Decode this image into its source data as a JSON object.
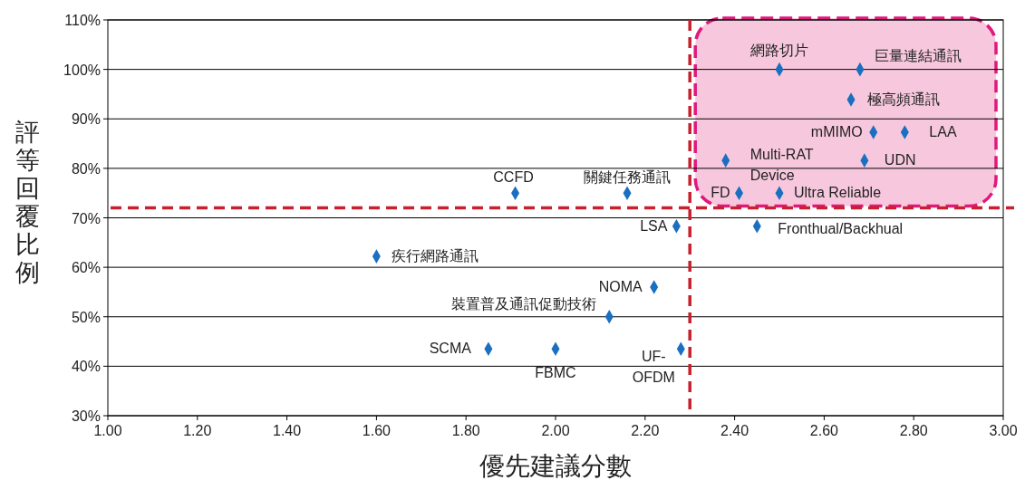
{
  "chart_data": {
    "type": "scatter",
    "xlabel": "優先建議分數",
    "ylabel": "評等回覆比例",
    "x": [
      2.5,
      2.68,
      2.66,
      2.71,
      2.78,
      2.38,
      2.69,
      2.41,
      2.5,
      2.45,
      2.27,
      1.91,
      2.16,
      1.6,
      2.22,
      2.12,
      1.85,
      2.0,
      2.28
    ],
    "series": [
      {
        "color": "#1a6fc0",
        "values": [
          100,
          100,
          93.9,
          87.3,
          87.3,
          81.6,
          81.6,
          75,
          75,
          68.3,
          68.3,
          75,
          75,
          62.2,
          56,
          50,
          43.5,
          43.5,
          43.5
        ]
      }
    ],
    "marker": "diamond",
    "grid": "y",
    "xlim": [
      1,
      3
    ],
    "xticks": [
      {
        "value": 1,
        "label": "1.00"
      },
      {
        "value": 1.2,
        "label": "1.20"
      },
      {
        "value": 1.4,
        "label": "1.40"
      },
      {
        "value": 1.6,
        "label": "1.60"
      },
      {
        "value": 1.8,
        "label": "1.80"
      },
      {
        "value": 2,
        "label": "2.00"
      },
      {
        "value": 2.2,
        "label": "2.20"
      },
      {
        "value": 2.4,
        "label": "2.40"
      },
      {
        "value": 2.6,
        "label": "2.60"
      },
      {
        "value": 2.8,
        "label": "2.80"
      },
      {
        "value": 3,
        "label": "3.00"
      }
    ],
    "ylim": [
      30,
      110
    ],
    "yticks": [
      {
        "value": 30,
        "label": "30%"
      },
      {
        "value": 40,
        "label": "40%"
      },
      {
        "value": 50,
        "label": "50%"
      },
      {
        "value": 60,
        "label": "60%"
      },
      {
        "value": 70,
        "label": "70%"
      },
      {
        "value": 80,
        "label": "80%"
      },
      {
        "value": 90,
        "label": "90%"
      },
      {
        "value": 100,
        "label": "100%"
      },
      {
        "value": 110,
        "label": "110%"
      }
    ],
    "ref_lines": [
      {
        "axis": "x",
        "value": 2.3,
        "color": "#c8202e",
        "line_style": "dashed"
      },
      {
        "axis": "y",
        "value": 72,
        "color": "#c8202e",
        "line_style": "dashed"
      }
    ],
    "annotations": [
      {
        "text": "網路切片",
        "x": 2.5,
        "y": 100
      },
      {
        "text": "巨量連結通訊",
        "x": 2.68,
        "y": 100
      },
      {
        "text": "極高頻通訊",
        "x": 2.66,
        "y": 93.9
      },
      {
        "text": "mMIMO",
        "x": 2.71,
        "y": 87.3
      },
      {
        "text": "LAA",
        "x": 2.78,
        "y": 87.3
      },
      {
        "text": "Multi-RAT\nDevice",
        "x": 2.38,
        "y": 81.6
      },
      {
        "text": "UDN",
        "x": 2.69,
        "y": 81.6
      },
      {
        "text": "FD",
        "x": 2.41,
        "y": 75
      },
      {
        "text": "Ultra Reliable",
        "x": 2.5,
        "y": 75
      },
      {
        "text": "Fronthual/Backhual",
        "x": 2.45,
        "y": 68.3
      },
      {
        "text": "LSA",
        "x": 2.27,
        "y": 68.3
      },
      {
        "text": "CCFD",
        "x": 1.91,
        "y": 75
      },
      {
        "text": "關鍵任務通訊",
        "x": 2.16,
        "y": 75
      },
      {
        "text": "疾行網路通訊",
        "x": 1.6,
        "y": 62.2
      },
      {
        "text": "NOMA",
        "x": 2.22,
        "y": 56
      },
      {
        "text": "裝置普及通訊促動技術",
        "x": 2.12,
        "y": 50
      },
      {
        "text": "SCMA",
        "x": 1.85,
        "y": 43.5
      },
      {
        "text": "FBMC",
        "x": 2.0,
        "y": 43.5
      },
      {
        "text": "UF-\nOFDM",
        "x": 2.28,
        "y": 43.5
      }
    ]
  }
}
